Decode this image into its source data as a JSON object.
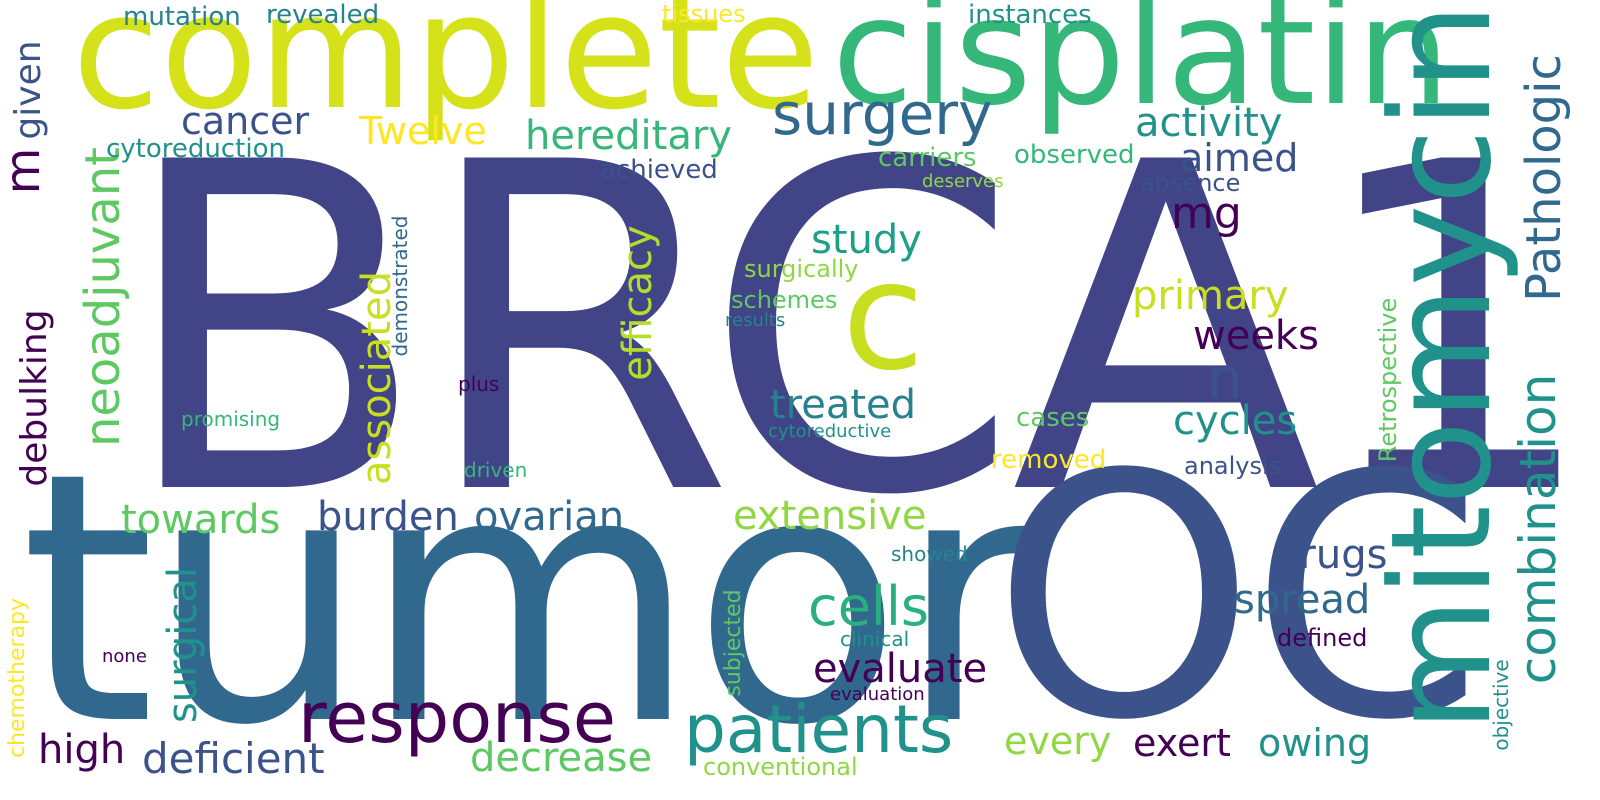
{
  "palette": {
    "dark_purple": "#440154",
    "indigo": "#414487",
    "blue": "#31688e",
    "teal": "#21918c",
    "green": "#35b779",
    "lime": "#90d743",
    "yellow": "#d5e21a",
    "bright_yellow": "#fde725"
  },
  "words": [
    {
      "text": "BRCA1"
    },
    {
      "text": "tumor"
    },
    {
      "text": "OC"
    },
    {
      "text": "complete"
    },
    {
      "text": "cisplatin"
    },
    {
      "text": "mitomycin"
    },
    {
      "text": "c"
    },
    {
      "text": "response"
    },
    {
      "text": "patients"
    },
    {
      "text": "Pathologic"
    },
    {
      "text": "combination"
    },
    {
      "text": "surgery"
    },
    {
      "text": "neoadjuvant"
    },
    {
      "text": "n"
    },
    {
      "text": "cells"
    },
    {
      "text": "hereditary"
    },
    {
      "text": "deficient"
    },
    {
      "text": "evaluate"
    },
    {
      "text": "activity"
    },
    {
      "text": "extensive"
    },
    {
      "text": "efficacy"
    },
    {
      "text": "decrease"
    },
    {
      "text": "ovarian"
    },
    {
      "text": "associated"
    },
    {
      "text": "debulking"
    },
    {
      "text": "treated"
    },
    {
      "text": "cycles"
    },
    {
      "text": "towards"
    },
    {
      "text": "burden"
    },
    {
      "text": "mg"
    },
    {
      "text": "primary"
    },
    {
      "text": "cancer"
    },
    {
      "text": "Twelve"
    },
    {
      "text": "study"
    },
    {
      "text": "aimed"
    },
    {
      "text": "weeks"
    },
    {
      "text": "drugs"
    },
    {
      "text": "spread"
    },
    {
      "text": "surgical"
    },
    {
      "text": "every"
    },
    {
      "text": "exert"
    },
    {
      "text": "owing"
    },
    {
      "text": "high"
    },
    {
      "text": "m"
    },
    {
      "text": "given"
    },
    {
      "text": "Retrospective"
    },
    {
      "text": "cytoreduction"
    },
    {
      "text": "mutation"
    },
    {
      "text": "revealed"
    },
    {
      "text": "instances"
    },
    {
      "text": "carriers"
    },
    {
      "text": "observed"
    },
    {
      "text": "achieved"
    },
    {
      "text": "absence"
    },
    {
      "text": "tissues"
    },
    {
      "text": "surgically"
    },
    {
      "text": "schemes"
    },
    {
      "text": "cases"
    },
    {
      "text": "removed"
    },
    {
      "text": "analysis"
    },
    {
      "text": "defined"
    },
    {
      "text": "showed"
    },
    {
      "text": "clinical"
    },
    {
      "text": "objective"
    },
    {
      "text": "chemotherapy"
    },
    {
      "text": "subjected"
    },
    {
      "text": "conventional"
    },
    {
      "text": "demonstrated"
    },
    {
      "text": "results"
    },
    {
      "text": "promising"
    },
    {
      "text": "plus"
    },
    {
      "text": "driven"
    },
    {
      "text": "cytoreductive"
    },
    {
      "text": "deserves"
    },
    {
      "text": "evaluation"
    },
    {
      "text": "none"
    }
  ]
}
